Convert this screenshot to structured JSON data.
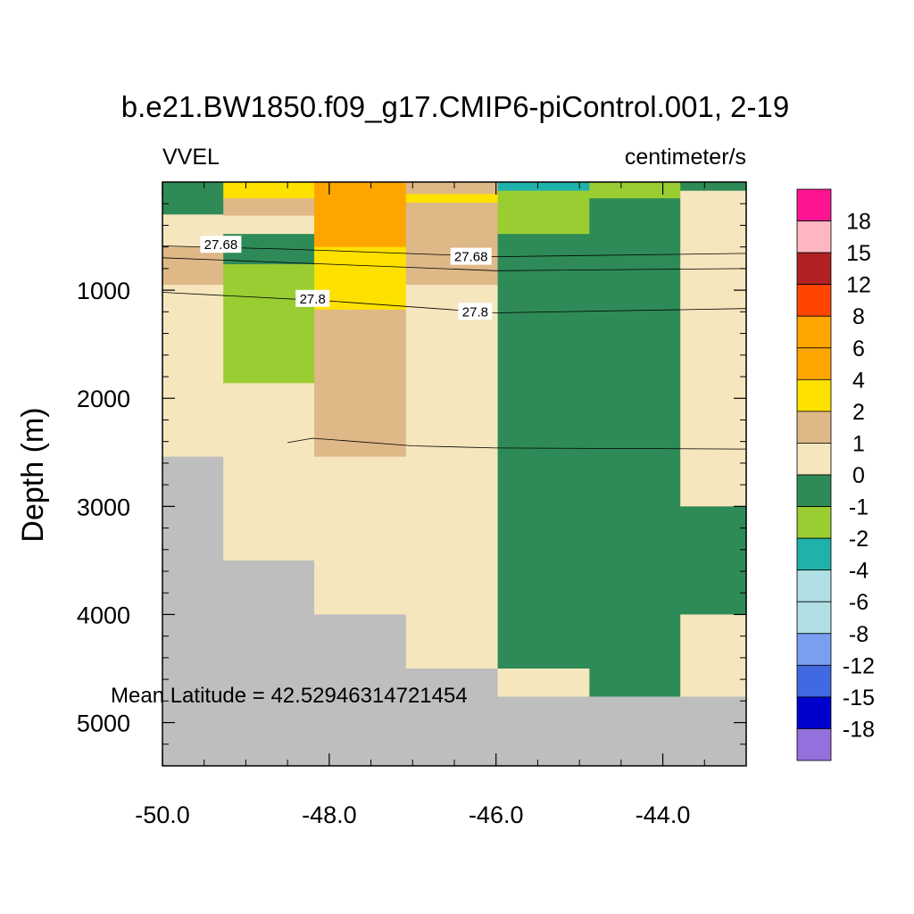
{
  "chart_data": {
    "type": "heatmap",
    "title": "b.e21.BW1850.f09_g17.CMIP6-piControl.001, 2-19",
    "left_label": "VVEL",
    "right_label": "centimeter/s",
    "ylabel": "Depth (m)",
    "xlabel": "",
    "xlim": [
      -50.0,
      -43.0
    ],
    "ylim": [
      5400,
      0
    ],
    "xticks": [
      -50.0,
      -48.0,
      -46.0,
      -44.0
    ],
    "xtick_labels": [
      "-50.0",
      "-48.0",
      "-46.0",
      "-44.0"
    ],
    "yticks": [
      1000,
      2000,
      3000,
      4000,
      5000
    ],
    "ytick_labels": [
      "1000",
      "2000",
      "3000",
      "4000",
      "5000"
    ],
    "annotation": "Mean Latitude = 42.52946314721454",
    "missing_color": "#bebebe",
    "columns": [
      -50.0,
      -49.27,
      -48.18,
      -47.08,
      -45.98,
      -44.88,
      -43.79,
      -43.0
    ],
    "cells": [
      {
        "c": 0,
        "d0": 0,
        "d1": 300,
        "bin": "-1"
      },
      {
        "c": 0,
        "d0": 300,
        "d1": 600,
        "bin": "0"
      },
      {
        "c": 0,
        "d0": 600,
        "d1": 950,
        "bin": "1"
      },
      {
        "c": 0,
        "d0": 950,
        "d1": 2540,
        "bin": "0"
      },
      {
        "c": 0,
        "d0": 2540,
        "d1": 5400,
        "bin": "missing"
      },
      {
        "c": 1,
        "d0": 0,
        "d1": 150,
        "bin": "2"
      },
      {
        "c": 1,
        "d0": 150,
        "d1": 310,
        "bin": "1"
      },
      {
        "c": 1,
        "d0": 310,
        "d1": 480,
        "bin": "0"
      },
      {
        "c": 1,
        "d0": 480,
        "d1": 760,
        "bin": "-1"
      },
      {
        "c": 1,
        "d0": 760,
        "d1": 1860,
        "bin": "-2"
      },
      {
        "c": 1,
        "d0": 1860,
        "d1": 3500,
        "bin": "0"
      },
      {
        "c": 1,
        "d0": 3500,
        "d1": 5400,
        "bin": "missing"
      },
      {
        "c": 2,
        "d0": 0,
        "d1": 600,
        "bin": "4"
      },
      {
        "c": 2,
        "d0": 600,
        "d1": 1180,
        "bin": "2"
      },
      {
        "c": 2,
        "d0": 1180,
        "d1": 2540,
        "bin": "1"
      },
      {
        "c": 2,
        "d0": 2540,
        "d1": 4000,
        "bin": "0"
      },
      {
        "c": 2,
        "d0": 4000,
        "d1": 5400,
        "bin": "missing"
      },
      {
        "c": 3,
        "d0": 0,
        "d1": 110,
        "bin": "1"
      },
      {
        "c": 3,
        "d0": 110,
        "d1": 190,
        "bin": "2"
      },
      {
        "c": 3,
        "d0": 190,
        "d1": 950,
        "bin": "1"
      },
      {
        "c": 3,
        "d0": 950,
        "d1": 4500,
        "bin": "0"
      },
      {
        "c": 3,
        "d0": 4500,
        "d1": 5400,
        "bin": "missing"
      },
      {
        "c": 4,
        "d0": 0,
        "d1": 80,
        "bin": "-4"
      },
      {
        "c": 4,
        "d0": 80,
        "d1": 480,
        "bin": "-2"
      },
      {
        "c": 4,
        "d0": 480,
        "d1": 4500,
        "bin": "-1"
      },
      {
        "c": 4,
        "d0": 4500,
        "d1": 4760,
        "bin": "0"
      },
      {
        "c": 4,
        "d0": 4760,
        "d1": 5400,
        "bin": "missing"
      },
      {
        "c": 5,
        "d0": 0,
        "d1": 150,
        "bin": "-2"
      },
      {
        "c": 5,
        "d0": 150,
        "d1": 4760,
        "bin": "-1"
      },
      {
        "c": 5,
        "d0": 4760,
        "d1": 5400,
        "bin": "missing"
      },
      {
        "c": 6,
        "d0": 0,
        "d1": 80,
        "bin": "-1"
      },
      {
        "c": 6,
        "d0": 80,
        "d1": 3000,
        "bin": "0"
      },
      {
        "c": 6,
        "d0": 3000,
        "d1": 4000,
        "bin": "-1"
      },
      {
        "c": 6,
        "d0": 4000,
        "d1": 4760,
        "bin": "0"
      },
      {
        "c": 6,
        "d0": 4760,
        "d1": 5400,
        "bin": "missing"
      }
    ],
    "contours": [
      {
        "label": "27.68",
        "points": [
          [
            -50.0,
            590
          ],
          [
            -48.5,
            620
          ],
          [
            -46.0,
            690
          ],
          [
            -43.0,
            660
          ]
        ],
        "label_at": [
          [
            -49.3,
            580
          ],
          [
            -46.3,
            690
          ]
        ]
      },
      {
        "label": "",
        "points": [
          [
            -50.0,
            700
          ],
          [
            -48.0,
            760
          ],
          [
            -46.0,
            820
          ],
          [
            -43.0,
            800
          ]
        ],
        "label_at": []
      },
      {
        "label": "27.8",
        "points": [
          [
            -50.0,
            1020
          ],
          [
            -48.0,
            1100
          ],
          [
            -46.0,
            1210
          ],
          [
            -43.0,
            1170
          ]
        ],
        "label_at": [
          [
            -48.2,
            1080
          ],
          [
            -46.25,
            1200
          ]
        ]
      },
      {
        "label": "",
        "points": [
          [
            -48.5,
            2410
          ],
          [
            -48.2,
            2370
          ],
          [
            -47.0,
            2440
          ],
          [
            -46.0,
            2460
          ],
          [
            -43.0,
            2470
          ]
        ],
        "label_at": []
      }
    ],
    "colorbar": {
      "labels": [
        "18",
        "15",
        "12",
        "8",
        "6",
        "4",
        "2",
        "1",
        "0",
        "-1",
        "-2",
        "-4",
        "-6",
        "-8",
        "-12",
        "-15",
        "-18"
      ],
      "bins": [
        {
          "id": "gt18",
          "color": "#ff1493"
        },
        {
          "id": "15",
          "color": "#ffb6c1"
        },
        {
          "id": "12",
          "color": "#b22222"
        },
        {
          "id": "8",
          "color": "#ff4500"
        },
        {
          "id": "6",
          "color": "#ffa500"
        },
        {
          "id": "4",
          "color": "#ffa500"
        },
        {
          "id": "2",
          "color": "#ffe100"
        },
        {
          "id": "1",
          "color": "#deb887"
        },
        {
          "id": "0",
          "color": "#f5e6be"
        },
        {
          "id": "-1",
          "color": "#2e8b57"
        },
        {
          "id": "-2",
          "color": "#9acd32"
        },
        {
          "id": "-4",
          "color": "#20b2aa"
        },
        {
          "id": "-6",
          "color": "#b0e0e6"
        },
        {
          "id": "-8",
          "color": "#b0e0e6"
        },
        {
          "id": "-12",
          "color": "#7b9ff0"
        },
        {
          "id": "-15",
          "color": "#4169e1"
        },
        {
          "id": "-18",
          "color": "#0000cd"
        },
        {
          "id": "lt-18",
          "color": "#9370db"
        }
      ]
    }
  }
}
